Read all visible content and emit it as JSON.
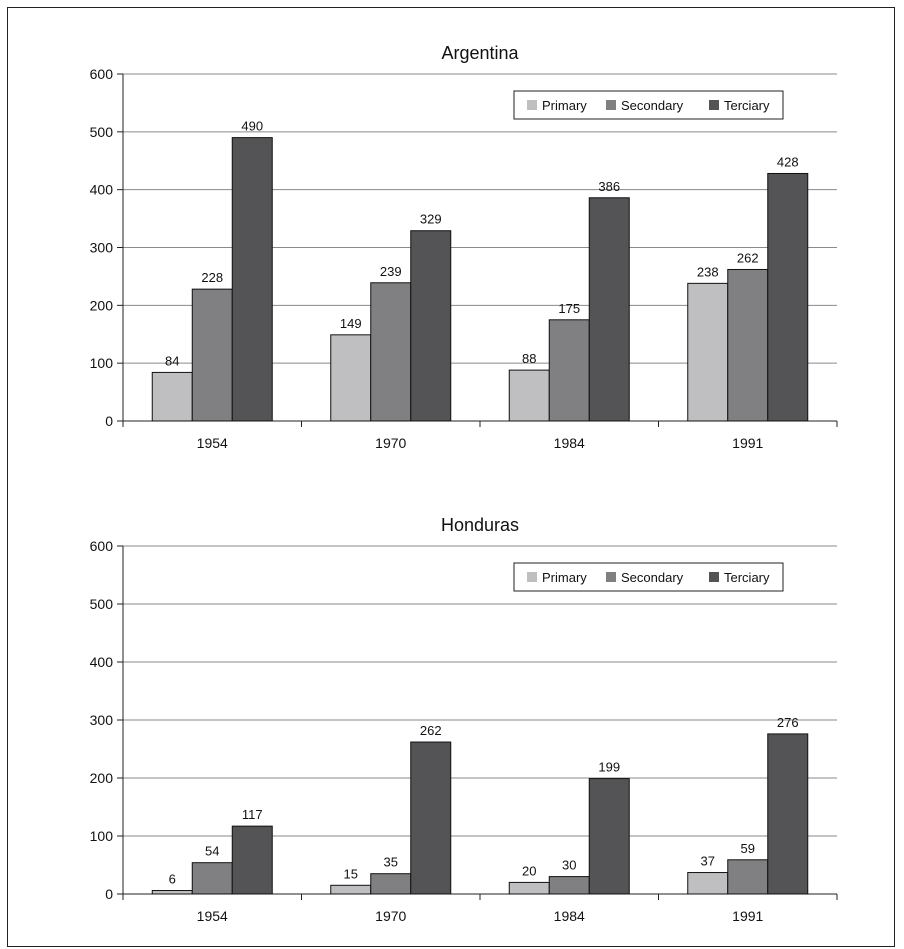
{
  "chart_data": [
    {
      "type": "bar",
      "title": "Argentina",
      "categories": [
        "1954",
        "1970",
        "1984",
        "1991"
      ],
      "series": [
        {
          "name": "Primary",
          "values": [
            84,
            149,
            88,
            238
          ],
          "color": "#bfbfc1"
        },
        {
          "name": "Secondary",
          "values": [
            228,
            239,
            175,
            262
          ],
          "color": "#808083"
        },
        {
          "name": "Terciary",
          "values": [
            490,
            329,
            386,
            428
          ],
          "color": "#545457"
        }
      ],
      "ylim": [
        0,
        600
      ],
      "yticks": [
        0,
        100,
        200,
        300,
        400,
        500,
        600
      ],
      "grid": true,
      "legend": "top-right"
    },
    {
      "type": "bar",
      "title": "Honduras",
      "categories": [
        "1954",
        "1970",
        "1984",
        "1991"
      ],
      "series": [
        {
          "name": "Primary",
          "values": [
            6,
            15,
            20,
            37
          ],
          "color": "#bfbfc1"
        },
        {
          "name": "Secondary",
          "values": [
            54,
            35,
            30,
            59
          ],
          "color": "#808083"
        },
        {
          "name": "Terciary",
          "values": [
            117,
            262,
            199,
            276
          ],
          "color": "#545457"
        }
      ],
      "ylim": [
        0,
        600
      ],
      "yticks": [
        0,
        100,
        200,
        300,
        400,
        500,
        600
      ],
      "grid": true,
      "legend": "top-right"
    }
  ]
}
